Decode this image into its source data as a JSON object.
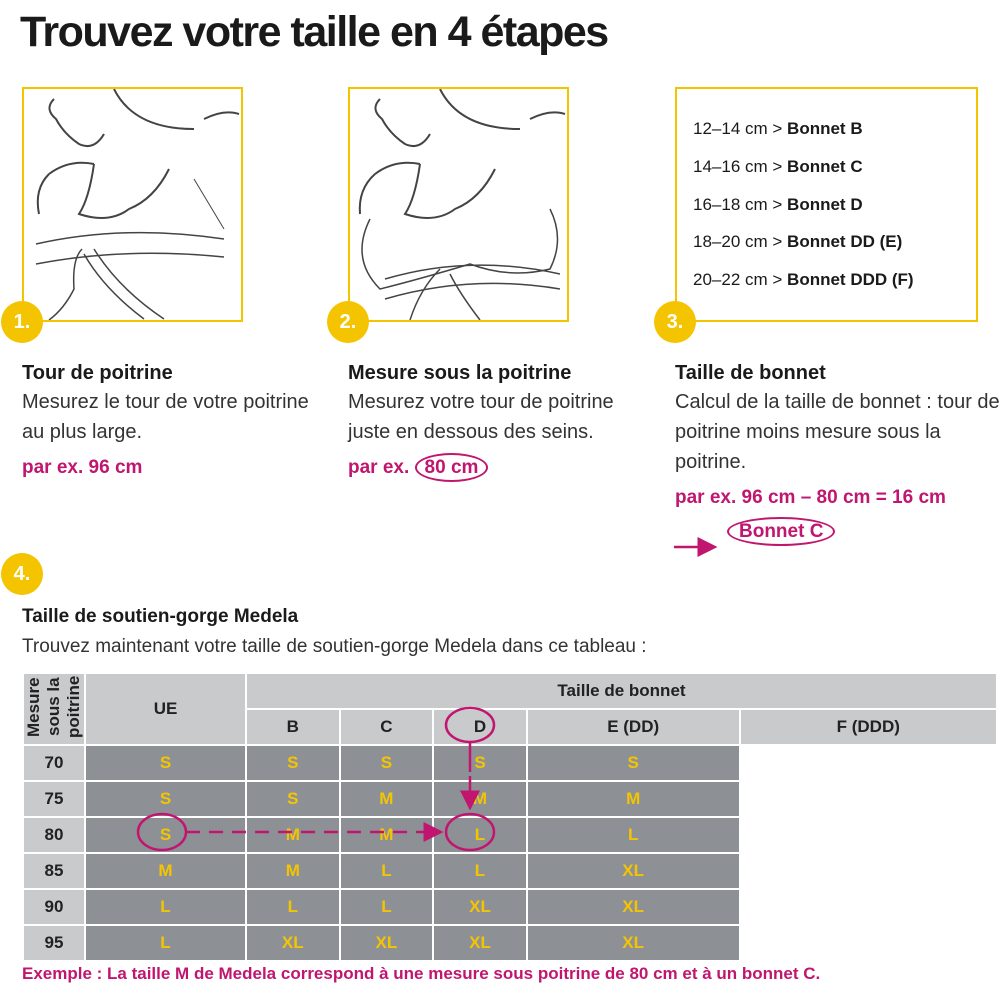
{
  "title": "Trouvez votre taille en 4 étapes",
  "steps": [
    {
      "badge": "1.",
      "heading": "Tour de poitrine",
      "body": "Mesurez le tour de votre poitrine au plus large.",
      "example": "par ex. 96 cm"
    },
    {
      "badge": "2.",
      "heading": "Mesure sous la poitrine",
      "body": "Mesurez votre tour de poitrine juste en dessous des seins.",
      "example_prefix": "par ex.",
      "example_value": "80 cm"
    },
    {
      "badge": "3.",
      "heading": "Taille de bonnet",
      "body": "Calcul de la taille de bonnet : tour de poitrine moins mesure sous la poitrine.",
      "example": "par ex. 96 cm – 80 cm = 16 cm",
      "result": "Bonnet C"
    }
  ],
  "cup_table": [
    {
      "range": "12–14 cm >",
      "cup": "Bonnet B"
    },
    {
      "range": "14–16 cm >",
      "cup": "Bonnet C"
    },
    {
      "range": "16–18 cm >",
      "cup": "Bonnet D"
    },
    {
      "range": "18–20 cm >",
      "cup": "Bonnet DD (E)"
    },
    {
      "range": "20–22 cm >",
      "cup": "Bonnet DDD (F)"
    }
  ],
  "step4": {
    "badge": "4.",
    "heading": "Taille de soutien-gorge Medela",
    "subtitle": "Trouvez maintenant votre taille de soutien-gorge Medela dans ce tableau :"
  },
  "size_table": {
    "row_axis_label": "Mesure sous la poitrine",
    "ue_label": "UE",
    "cup_header": "Taille de bonnet",
    "columns": [
      "B",
      "C",
      "D",
      "E (DD)",
      "F (DDD)"
    ],
    "rows": [
      {
        "ue": "70",
        "sizes": [
          "S",
          "S",
          "S",
          "S",
          "S"
        ]
      },
      {
        "ue": "75",
        "sizes": [
          "S",
          "S",
          "M",
          "M",
          "M"
        ]
      },
      {
        "ue": "80",
        "sizes": [
          "S",
          "M",
          "M",
          "L",
          "L"
        ]
      },
      {
        "ue": "85",
        "sizes": [
          "M",
          "M",
          "L",
          "L",
          "XL"
        ]
      },
      {
        "ue": "90",
        "sizes": [
          "L",
          "L",
          "L",
          "XL",
          "XL"
        ]
      },
      {
        "ue": "95",
        "sizes": [
          "L",
          "XL",
          "XL",
          "XL",
          "XL"
        ]
      }
    ]
  },
  "footer": "Exemple : La taille M de Medela correspond à une mesure sous poitrine de 80 cm et à un bonnet C.",
  "colors": {
    "accent_yellow": "#f5c400",
    "highlight_magenta": "#c0166f",
    "table_light": "#c9cacc",
    "table_dark": "#8d9196"
  }
}
